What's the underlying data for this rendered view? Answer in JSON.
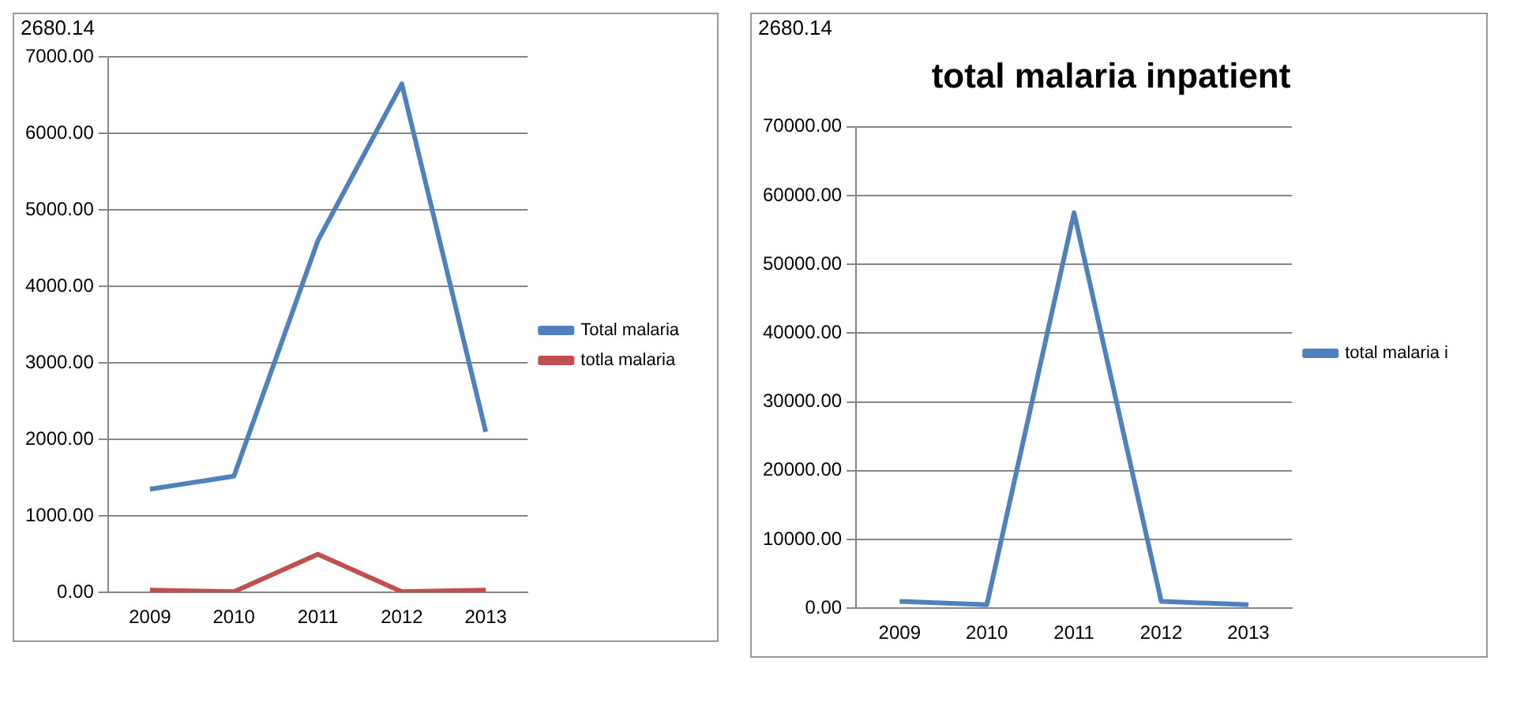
{
  "chart_data": [
    {
      "type": "line",
      "annotations": [
        "2680.14"
      ],
      "categories": [
        "2009",
        "2010",
        "2011",
        "2012",
        "2013"
      ],
      "series": [
        {
          "name": "Total malaria",
          "color": "#4f81bd",
          "values": [
            1350,
            1520,
            4600,
            6650,
            2100
          ]
        },
        {
          "name": "totla malaria",
          "color": "#c0504d",
          "values": [
            30,
            10,
            500,
            10,
            30
          ]
        }
      ],
      "ylim": [
        0,
        7000
      ],
      "yticks": [
        {
          "value": 0,
          "label": "0.00"
        },
        {
          "value": 1000,
          "label": "1000.00"
        },
        {
          "value": 2000,
          "label": "2000.00"
        },
        {
          "value": 3000,
          "label": "3000.00"
        },
        {
          "value": 4000,
          "label": "4000.00"
        },
        {
          "value": 5000,
          "label": "5000.00"
        },
        {
          "value": 6000,
          "label": "6000.00"
        },
        {
          "value": 7000,
          "label": "7000.00"
        }
      ],
      "grid": "y",
      "legend": "right",
      "marker": "none"
    },
    {
      "type": "line",
      "title": "total malaria inpatient",
      "annotations": [
        "2680.14"
      ],
      "categories": [
        "2009",
        "2010",
        "2011",
        "2012",
        "2013"
      ],
      "series": [
        {
          "name": "total malaria i",
          "color": "#4f81bd",
          "values": [
            1000,
            500,
            57500,
            1000,
            500
          ]
        }
      ],
      "ylim": [
        0,
        70000
      ],
      "yticks": [
        {
          "value": 0,
          "label": "0.00"
        },
        {
          "value": 10000,
          "label": "10000.00"
        },
        {
          "value": 20000,
          "label": "20000.00"
        },
        {
          "value": 30000,
          "label": "30000.00"
        },
        {
          "value": 40000,
          "label": "40000.00"
        },
        {
          "value": 50000,
          "label": "50000.00"
        },
        {
          "value": 60000,
          "label": "60000.00"
        },
        {
          "value": 70000,
          "label": "70000.00"
        }
      ],
      "grid": "y",
      "legend": "right",
      "marker": "none"
    }
  ]
}
